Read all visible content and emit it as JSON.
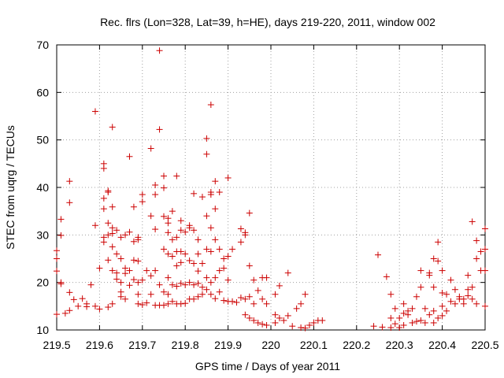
{
  "chart_data": {
    "type": "scatter",
    "title": "Rec. flrs (Lon=328, Lat=39, h=HE), days 219-220, 2011, window 002",
    "xlabel": "GPS time / Days of year 2011",
    "ylabel": "STEC from uqrg / TECUs",
    "xlim": [
      219.5,
      220.5
    ],
    "ylim": [
      10,
      70
    ],
    "xticks": [
      219.5,
      219.6,
      219.7,
      219.8,
      219.9,
      220,
      220.1,
      220.2,
      220.3,
      220.4,
      220.5
    ],
    "xtick_labels": [
      "219.5",
      "219.6",
      "219.7",
      "219.8",
      "219.9",
      "220",
      "220.1",
      "220.2",
      "220.3",
      "220.4",
      "220.5"
    ],
    "yticks": [
      10,
      20,
      30,
      40,
      50,
      60,
      70
    ],
    "ytick_labels": [
      "10",
      "20",
      "30",
      "40",
      "50",
      "60",
      "70"
    ],
    "grid": true,
    "marker": "+",
    "marker_color": "#cc0000",
    "series": [
      {
        "name": "STEC",
        "points": [
          [
            219.5,
            13.3
          ],
          [
            219.5,
            22.4
          ],
          [
            219.5,
            25.0
          ],
          [
            219.5,
            26.7
          ],
          [
            219.51,
            29.9
          ],
          [
            219.51,
            20.0
          ],
          [
            219.51,
            33.3
          ],
          [
            219.51,
            19.7
          ],
          [
            219.52,
            13.5
          ],
          [
            219.53,
            41.3
          ],
          [
            219.53,
            36.8
          ],
          [
            219.53,
            17.9
          ],
          [
            219.53,
            14.1
          ],
          [
            219.54,
            16.4
          ],
          [
            219.55,
            15.0
          ],
          [
            219.56,
            16.6
          ],
          [
            219.57,
            15.5
          ],
          [
            219.57,
            14.9
          ],
          [
            219.58,
            19.5
          ],
          [
            219.59,
            15.0
          ],
          [
            219.59,
            56.0
          ],
          [
            219.59,
            32.0
          ],
          [
            219.6,
            14.4
          ],
          [
            219.6,
            23.0
          ],
          [
            219.61,
            45.0
          ],
          [
            219.61,
            44.0
          ],
          [
            219.61,
            29.5
          ],
          [
            219.61,
            28.5
          ],
          [
            219.61,
            37.7
          ],
          [
            219.61,
            35.5
          ],
          [
            219.62,
            39.3
          ],
          [
            219.62,
            39.0
          ],
          [
            219.62,
            32.5
          ],
          [
            219.62,
            30.0
          ],
          [
            219.62,
            24.7
          ],
          [
            219.62,
            14.8
          ],
          [
            219.63,
            52.7
          ],
          [
            219.63,
            35.9
          ],
          [
            219.63,
            31.5
          ],
          [
            219.63,
            30.3
          ],
          [
            219.63,
            27.5
          ],
          [
            219.63,
            22.5
          ],
          [
            219.63,
            15.5
          ],
          [
            219.64,
            31.0
          ],
          [
            219.64,
            26.0
          ],
          [
            219.64,
            22.0
          ],
          [
            219.64,
            20.7
          ],
          [
            219.65,
            29.5
          ],
          [
            219.65,
            25.0
          ],
          [
            219.65,
            20.0
          ],
          [
            219.65,
            18.0
          ],
          [
            219.65,
            17.0
          ],
          [
            219.66,
            30.0
          ],
          [
            219.66,
            23.0
          ],
          [
            219.66,
            21.9
          ],
          [
            219.66,
            16.5
          ],
          [
            219.67,
            46.5
          ],
          [
            219.67,
            30.6
          ],
          [
            219.67,
            22.5
          ],
          [
            219.67,
            19.4
          ],
          [
            219.68,
            35.9
          ],
          [
            219.68,
            28.6
          ],
          [
            219.68,
            24.7
          ],
          [
            219.68,
            20.6
          ],
          [
            219.69,
            29.5
          ],
          [
            219.69,
            29.0
          ],
          [
            219.69,
            24.5
          ],
          [
            219.69,
            20.0
          ],
          [
            219.69,
            17.5
          ],
          [
            219.69,
            15.5
          ],
          [
            219.7,
            38.5
          ],
          [
            219.7,
            37.0
          ],
          [
            219.7,
            20.5
          ],
          [
            219.7,
            15.3
          ],
          [
            219.71,
            22.5
          ],
          [
            219.71,
            15.7
          ],
          [
            219.72,
            48.2
          ],
          [
            219.72,
            34.0
          ],
          [
            219.72,
            21.4
          ],
          [
            219.72,
            17.5
          ],
          [
            219.73,
            40.5
          ],
          [
            219.73,
            38.5
          ],
          [
            219.73,
            31.2
          ],
          [
            219.73,
            22.5
          ],
          [
            219.73,
            15.2
          ],
          [
            219.74,
            68.8
          ],
          [
            219.74,
            52.2
          ],
          [
            219.74,
            19.5
          ],
          [
            219.74,
            15.2
          ],
          [
            219.75,
            42.4
          ],
          [
            219.75,
            39.9
          ],
          [
            219.75,
            33.9
          ],
          [
            219.75,
            27.0
          ],
          [
            219.75,
            18.0
          ],
          [
            219.75,
            15.2
          ],
          [
            219.76,
            33.5
          ],
          [
            219.76,
            32.5
          ],
          [
            219.76,
            30.5
          ],
          [
            219.76,
            26.0
          ],
          [
            219.76,
            21.0
          ],
          [
            219.76,
            17.5
          ],
          [
            219.76,
            15.5
          ],
          [
            219.77,
            35.0
          ],
          [
            219.77,
            29.0
          ],
          [
            219.77,
            25.5
          ],
          [
            219.77,
            19.5
          ],
          [
            219.77,
            16.0
          ],
          [
            219.78,
            42.4
          ],
          [
            219.78,
            29.5
          ],
          [
            219.78,
            26.5
          ],
          [
            219.78,
            23.5
          ],
          [
            219.78,
            19.2
          ],
          [
            219.78,
            15.5
          ],
          [
            219.79,
            33.0
          ],
          [
            219.79,
            31.0
          ],
          [
            219.79,
            26.5
          ],
          [
            219.79,
            24.2
          ],
          [
            219.79,
            19.8
          ],
          [
            219.79,
            15.5
          ],
          [
            219.8,
            30.6
          ],
          [
            219.8,
            26.0
          ],
          [
            219.8,
            19.5
          ],
          [
            219.8,
            15.6
          ],
          [
            219.81,
            32.0
          ],
          [
            219.81,
            31.5
          ],
          [
            219.81,
            24.6
          ],
          [
            219.81,
            20.0
          ],
          [
            219.81,
            16.5
          ],
          [
            219.82,
            38.7
          ],
          [
            219.82,
            31.0
          ],
          [
            219.82,
            24.0
          ],
          [
            219.82,
            19.5
          ],
          [
            219.82,
            16.5
          ],
          [
            219.83,
            29.0
          ],
          [
            219.83,
            26.0
          ],
          [
            219.83,
            22.4
          ],
          [
            219.83,
            19.8
          ],
          [
            219.83,
            17.0
          ],
          [
            219.84,
            38.0
          ],
          [
            219.84,
            24.0
          ],
          [
            219.84,
            19.0
          ],
          [
            219.84,
            17.5
          ],
          [
            219.85,
            50.3
          ],
          [
            219.85,
            47.0
          ],
          [
            219.85,
            34.0
          ],
          [
            219.85,
            27.0
          ],
          [
            219.85,
            21.0
          ],
          [
            219.85,
            18.5
          ],
          [
            219.86,
            57.4
          ],
          [
            219.86,
            39.0
          ],
          [
            219.86,
            38.5
          ],
          [
            219.86,
            31.5
          ],
          [
            219.86,
            26.5
          ],
          [
            219.86,
            20.0
          ],
          [
            219.86,
            17.5
          ],
          [
            219.87,
            41.3
          ],
          [
            219.87,
            35.5
          ],
          [
            219.87,
            29.0
          ],
          [
            219.87,
            21.0
          ],
          [
            219.87,
            16.6
          ],
          [
            219.88,
            39.0
          ],
          [
            219.88,
            27.0
          ],
          [
            219.88,
            22.5
          ],
          [
            219.88,
            18.0
          ],
          [
            219.89,
            25.0
          ],
          [
            219.89,
            23.0
          ],
          [
            219.89,
            16.2
          ],
          [
            219.9,
            42.0
          ],
          [
            219.9,
            25.5
          ],
          [
            219.9,
            20.5
          ],
          [
            219.9,
            16.0
          ],
          [
            219.91,
            27.0
          ],
          [
            219.91,
            16.0
          ],
          [
            219.92,
            15.8
          ],
          [
            219.93,
            31.3
          ],
          [
            219.93,
            28.5
          ],
          [
            219.93,
            16.8
          ],
          [
            219.94,
            30.5
          ],
          [
            219.94,
            30.0
          ],
          [
            219.94,
            16.5
          ],
          [
            219.94,
            13.2
          ],
          [
            219.95,
            34.6
          ],
          [
            219.95,
            23.5
          ],
          [
            219.95,
            17.0
          ],
          [
            219.95,
            12.5
          ],
          [
            219.96,
            20.5
          ],
          [
            219.96,
            15.5
          ],
          [
            219.96,
            12.0
          ],
          [
            219.97,
            18.3
          ],
          [
            219.97,
            11.5
          ],
          [
            219.98,
            21.0
          ],
          [
            219.98,
            16.5
          ],
          [
            219.98,
            11.2
          ],
          [
            219.99,
            21.0
          ],
          [
            219.99,
            15.5
          ],
          [
            219.99,
            11.0
          ],
          [
            220.01,
            17.5
          ],
          [
            220.01,
            13.2
          ],
          [
            220.01,
            11.5
          ],
          [
            220.02,
            19.3
          ],
          [
            220.02,
            12.5
          ],
          [
            220.03,
            12.0
          ],
          [
            220.04,
            22.0
          ],
          [
            220.04,
            13.0
          ],
          [
            220.05,
            10.8
          ],
          [
            220.06,
            14.5
          ],
          [
            220.07,
            15.5
          ],
          [
            220.07,
            10.5
          ],
          [
            220.08,
            10.4
          ],
          [
            220.08,
            17.5
          ],
          [
            220.09,
            11.0
          ],
          [
            220.1,
            11.5
          ],
          [
            220.11,
            12.0
          ],
          [
            220.12,
            12.0
          ],
          [
            220.24,
            10.8
          ],
          [
            220.25,
            25.8
          ],
          [
            220.26,
            10.6
          ],
          [
            220.27,
            21.2
          ],
          [
            220.28,
            10.5
          ],
          [
            220.28,
            12.5
          ],
          [
            220.28,
            17.5
          ],
          [
            220.29,
            11.3
          ],
          [
            220.29,
            14.5
          ],
          [
            220.3,
            10.5
          ],
          [
            220.3,
            12.5
          ],
          [
            220.31,
            11.0
          ],
          [
            220.31,
            13.5
          ],
          [
            220.31,
            15.5
          ],
          [
            220.32,
            13.2
          ],
          [
            220.32,
            14.0
          ],
          [
            220.33,
            11.5
          ],
          [
            220.33,
            14.5
          ],
          [
            220.34,
            11.8
          ],
          [
            220.34,
            17.0
          ],
          [
            220.35,
            12.0
          ],
          [
            220.35,
            19.0
          ],
          [
            220.35,
            22.5
          ],
          [
            220.36,
            11.5
          ],
          [
            220.36,
            14.5
          ],
          [
            220.37,
            13.2
          ],
          [
            220.37,
            22.0
          ],
          [
            220.37,
            21.5
          ],
          [
            220.38,
            11.5
          ],
          [
            220.38,
            14.0
          ],
          [
            220.38,
            25.0
          ],
          [
            220.38,
            19.0
          ],
          [
            220.39,
            12.5
          ],
          [
            220.39,
            24.5
          ],
          [
            220.39,
            28.5
          ],
          [
            220.4,
            13.0
          ],
          [
            220.4,
            15.0
          ],
          [
            220.4,
            17.8
          ],
          [
            220.4,
            22.5
          ],
          [
            220.41,
            14.0
          ],
          [
            220.41,
            17.5
          ],
          [
            220.42,
            16.0
          ],
          [
            220.42,
            20.5
          ],
          [
            220.43,
            15.5
          ],
          [
            220.43,
            18.5
          ],
          [
            220.44,
            16.5
          ],
          [
            220.44,
            17.0
          ],
          [
            220.45,
            15.5
          ],
          [
            220.45,
            16.5
          ],
          [
            220.46,
            18.5
          ],
          [
            220.46,
            21.5
          ],
          [
            220.46,
            17.2
          ],
          [
            220.47,
            32.8
          ],
          [
            220.47,
            19.0
          ],
          [
            220.47,
            16.5
          ],
          [
            220.48,
            25.0
          ],
          [
            220.48,
            28.8
          ],
          [
            220.48,
            15.5
          ],
          [
            220.49,
            22.5
          ],
          [
            220.49,
            26.5
          ],
          [
            220.5,
            31.3
          ],
          [
            220.5,
            27.0
          ],
          [
            220.5,
            22.5
          ],
          [
            220.5,
            15.0
          ]
        ]
      }
    ]
  }
}
